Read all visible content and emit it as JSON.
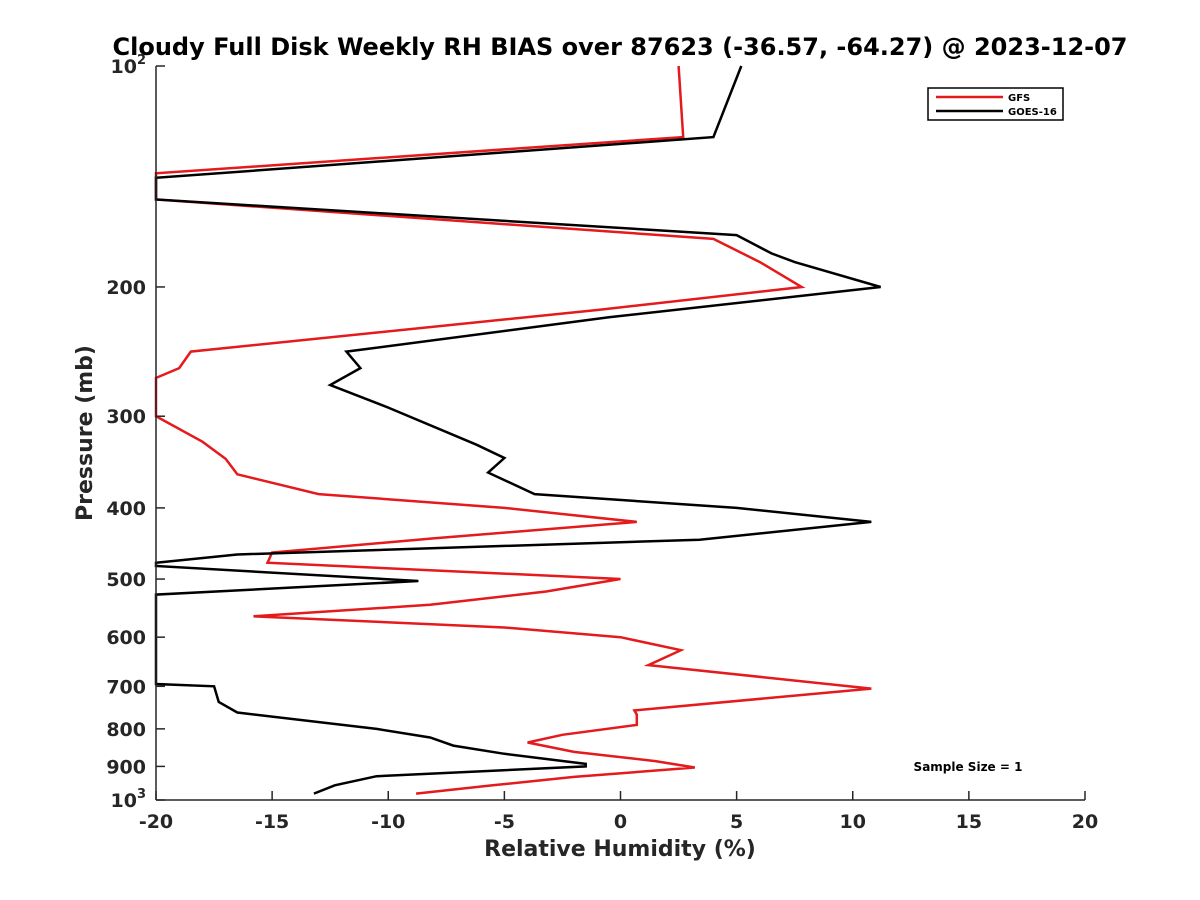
{
  "chart_data": {
    "type": "line",
    "title": "Cloudy Full Disk Weekly RH BIAS over 87623 (-36.57, -64.27) @ 2023-12-07",
    "xlabel": "Relative Humidity (%)",
    "ylabel": "Pressure (mb)",
    "xlim": [
      -20,
      20
    ],
    "ylim": [
      100,
      1000
    ],
    "y_scale": "log",
    "y_reversed": true,
    "grid": false,
    "legend_position": "top-right",
    "x_ticks": [
      {
        "value": -20,
        "label": "-20"
      },
      {
        "value": -15,
        "label": "-15"
      },
      {
        "value": -10,
        "label": "-10"
      },
      {
        "value": -5,
        "label": "-5"
      },
      {
        "value": 0,
        "label": "0"
      },
      {
        "value": 5,
        "label": "5"
      },
      {
        "value": 10,
        "label": "10"
      },
      {
        "value": 15,
        "label": "15"
      },
      {
        "value": 20,
        "label": "20"
      }
    ],
    "y_ticks": [
      {
        "value": 100,
        "base": "10",
        "exp": "2"
      },
      {
        "value": 200,
        "base": "200",
        "exp": ""
      },
      {
        "value": 300,
        "base": "300",
        "exp": ""
      },
      {
        "value": 400,
        "base": "400",
        "exp": ""
      },
      {
        "value": 500,
        "base": "500",
        "exp": ""
      },
      {
        "value": 600,
        "base": "600",
        "exp": ""
      },
      {
        "value": 700,
        "base": "700",
        "exp": ""
      },
      {
        "value": 800,
        "base": "800",
        "exp": ""
      },
      {
        "value": 900,
        "base": "900",
        "exp": ""
      },
      {
        "value": 1000,
        "base": "10",
        "exp": "3"
      }
    ],
    "series": [
      {
        "name": "GFS",
        "color": "#e41a1c",
        "points": [
          [
            2.5,
            100
          ],
          [
            2.7,
            125
          ],
          [
            -20,
            140
          ],
          [
            -20,
            152
          ],
          [
            4.0,
            172
          ],
          [
            6.0,
            185
          ],
          [
            7.8,
            200
          ],
          [
            -1.0,
            215
          ],
          [
            -18.5,
            245
          ],
          [
            -19.0,
            258
          ],
          [
            -20,
            266
          ],
          [
            -20,
            300
          ],
          [
            -18.0,
            325
          ],
          [
            -17.0,
            343
          ],
          [
            -16.5,
            360
          ],
          [
            -13.0,
            383
          ],
          [
            -5.0,
            400
          ],
          [
            0.7,
            418
          ],
          [
            -8.0,
            440
          ],
          [
            -15.0,
            460
          ],
          [
            -15.2,
            475
          ],
          [
            0.0,
            500
          ],
          [
            -3.2,
            520
          ],
          [
            -8.2,
            542
          ],
          [
            -15.8,
            562
          ],
          [
            -5.0,
            582
          ],
          [
            0.0,
            600
          ],
          [
            2.6,
            625
          ],
          [
            1.2,
            655
          ],
          [
            10.8,
            705
          ],
          [
            0.6,
            755
          ],
          [
            0.7,
            765
          ],
          [
            0.7,
            790
          ],
          [
            -2.5,
            815
          ],
          [
            -4.0,
            835
          ],
          [
            -2.0,
            860
          ],
          [
            1.5,
            885
          ],
          [
            3.2,
            903
          ],
          [
            -2.0,
            930
          ],
          [
            -5.5,
            955
          ],
          [
            -8.8,
            980
          ]
        ]
      },
      {
        "name": "GOES-16",
        "color": "#000000",
        "points": [
          [
            5.2,
            100
          ],
          [
            4.0,
            125
          ],
          [
            -20,
            142
          ],
          [
            -20,
            152
          ],
          [
            5.0,
            170
          ],
          [
            6.5,
            180
          ],
          [
            7.5,
            185
          ],
          [
            11.2,
            200
          ],
          [
            -0.5,
            220
          ],
          [
            -11.8,
            245
          ],
          [
            -11.2,
            258
          ],
          [
            -12.5,
            272
          ],
          [
            -10.0,
            292
          ],
          [
            -6.2,
            328
          ],
          [
            -5.0,
            342
          ],
          [
            -5.7,
            358
          ],
          [
            -3.7,
            383
          ],
          [
            5.0,
            400
          ],
          [
            10.8,
            418
          ],
          [
            3.4,
            442
          ],
          [
            -16.5,
            463
          ],
          [
            -20,
            475
          ],
          [
            -20,
            480
          ],
          [
            -8.7,
            503
          ],
          [
            -20,
            525
          ],
          [
            -20,
            695
          ],
          [
            -17.5,
            700
          ],
          [
            -17.3,
            735
          ],
          [
            -16.5,
            760
          ],
          [
            -10.5,
            800
          ],
          [
            -8.2,
            822
          ],
          [
            -7.2,
            843
          ],
          [
            -5.0,
            865
          ],
          [
            -1.5,
            893
          ],
          [
            -1.5,
            900
          ],
          [
            -10.5,
            928
          ],
          [
            -12.3,
            955
          ],
          [
            -13.2,
            980
          ]
        ]
      }
    ],
    "annotation": "Sample Size = 1"
  }
}
